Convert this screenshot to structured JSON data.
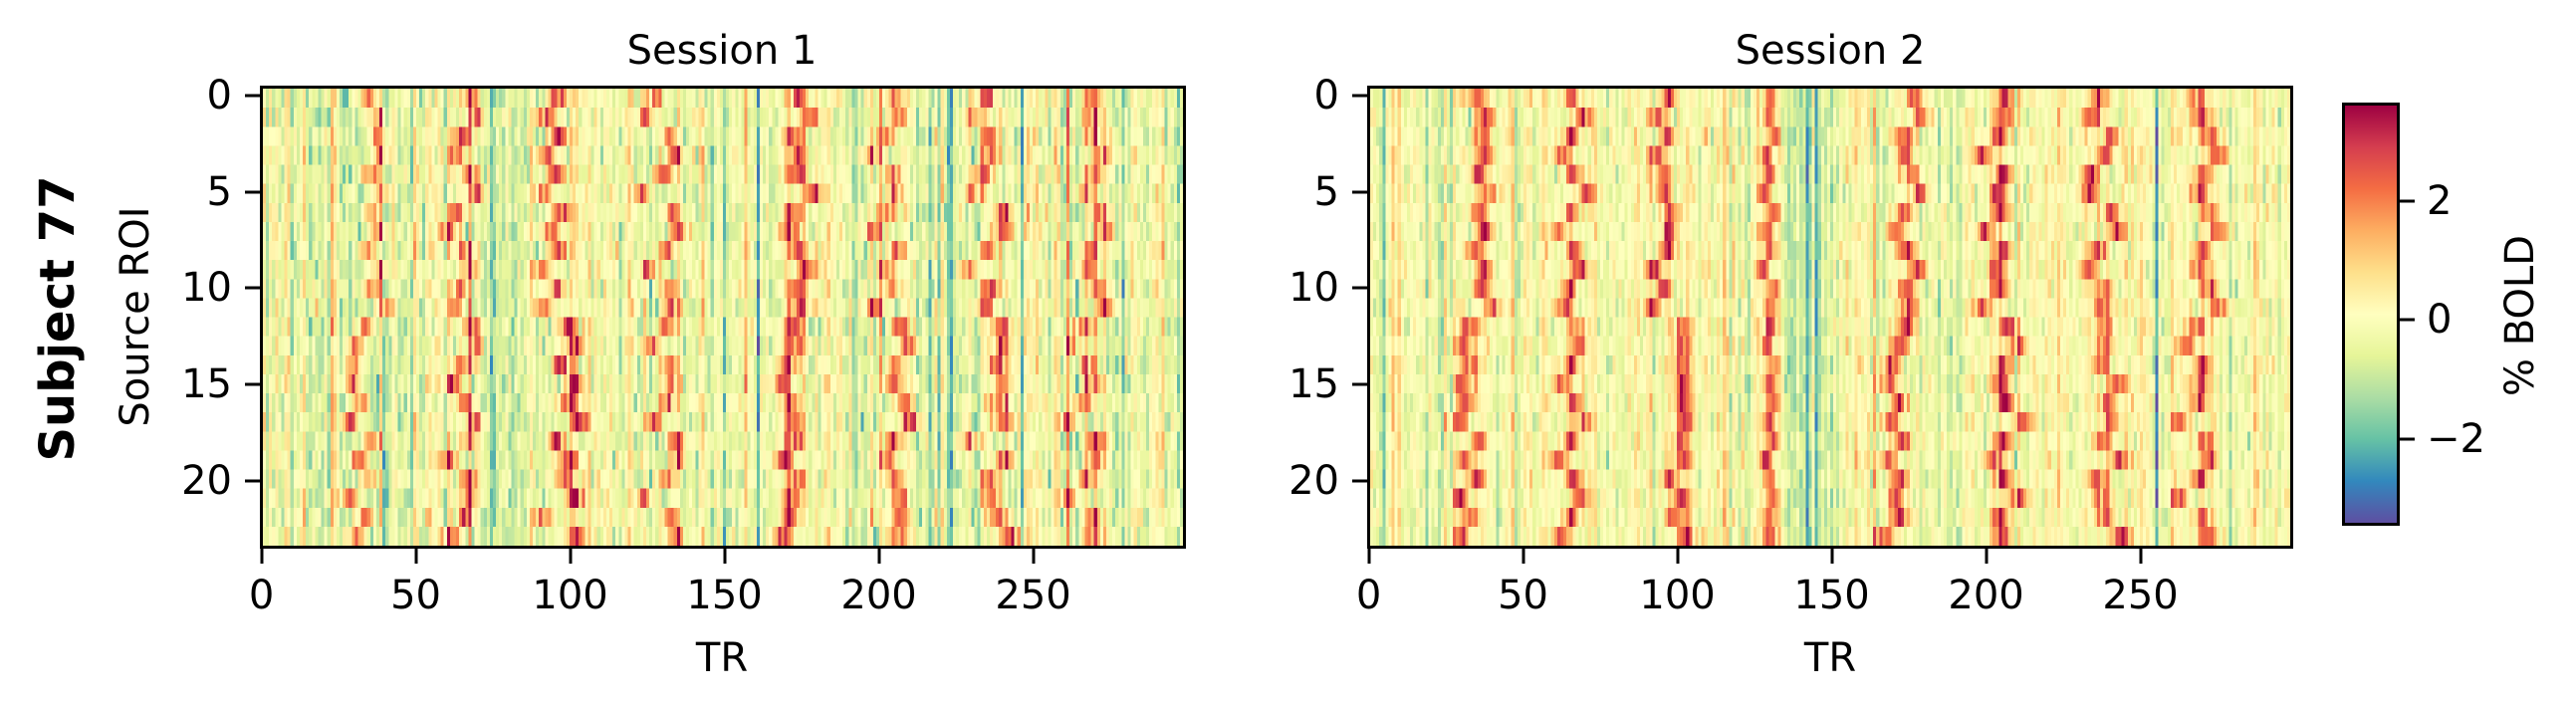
{
  "figure": {
    "row_label": "Subject 77",
    "colorbar": {
      "label": "% BOLD",
      "ticks": [
        {
          "value": 2,
          "label": "2"
        },
        {
          "value": 0,
          "label": "0"
        },
        {
          "value": -2,
          "label": "−2"
        }
      ],
      "vmin": -3.45,
      "vmax": 3.65,
      "colormap": "Spectral_r",
      "colormap_stops": [
        "#5e4fa2",
        "#3288bd",
        "#66c2a5",
        "#abdda4",
        "#e6f598",
        "#ffffbf",
        "#fee08b",
        "#fdae61",
        "#f46d43",
        "#d53e4f",
        "#9e0142"
      ]
    },
    "panels": [
      {
        "title": "Session 1",
        "xlabel": "TR",
        "ylabel": "Source ROI",
        "xticks": [
          {
            "v": 0,
            "l": "0"
          },
          {
            "v": 50,
            "l": "50"
          },
          {
            "v": 100,
            "l": "100"
          },
          {
            "v": 150,
            "l": "150"
          },
          {
            "v": 200,
            "l": "200"
          },
          {
            "v": 250,
            "l": "250"
          }
        ],
        "yticks": [
          {
            "v": 0,
            "l": "0"
          },
          {
            "v": 5,
            "l": "5"
          },
          {
            "v": 10,
            "l": "10"
          },
          {
            "v": 15,
            "l": "15"
          },
          {
            "v": 20,
            "l": "20"
          }
        ]
      },
      {
        "title": "Session 2",
        "xlabel": "TR",
        "ylabel": "",
        "xticks": [
          {
            "v": 0,
            "l": "0"
          },
          {
            "v": 50,
            "l": "50"
          },
          {
            "v": 100,
            "l": "100"
          },
          {
            "v": 150,
            "l": "150"
          },
          {
            "v": 200,
            "l": "200"
          },
          {
            "v": 250,
            "l": "250"
          }
        ],
        "yticks": [
          {
            "v": 0,
            "l": "0"
          },
          {
            "v": 5,
            "l": "5"
          },
          {
            "v": 10,
            "l": "10"
          },
          {
            "v": 15,
            "l": "15"
          },
          {
            "v": 20,
            "l": "20"
          }
        ]
      }
    ]
  },
  "chart_data": [
    {
      "type": "heatmap",
      "title": "Session 1",
      "row_label": "Subject 77",
      "xlabel": "TR",
      "ylabel": "Source ROI",
      "n_rows": 24,
      "n_cols": 300,
      "xlim": [
        -0.5,
        299.5
      ],
      "ylim": [
        23.5,
        -0.5
      ],
      "colorbar_label": "% BOLD",
      "vmin": -3.45,
      "vmax": 3.65,
      "baseline_mean": -0.35,
      "noise_sd": 0.75,
      "peak_bands": [
        {
          "amp": 2.9,
          "width": 2.2,
          "centers": [
            34,
            37,
            37,
            38,
            35,
            38,
            35,
            37,
            34,
            37,
            35,
            39,
            33,
            30,
            29,
            29,
            31,
            28,
            35,
            31,
            34,
            28,
            33,
            30
          ]
        },
        {
          "amp": 2.8,
          "width": 2.0,
          "centers": [
            67,
            69,
            65,
            62,
            67,
            69,
            63,
            60,
            66,
            67,
            64,
            62,
            68,
            69,
            65,
            61,
            66,
            68,
            67,
            60,
            67,
            67,
            66,
            61
          ]
        },
        {
          "amp": 3.0,
          "width": 2.2,
          "centers": [
            96,
            92,
            96,
            92,
            95,
            91,
            97,
            94,
            96,
            91,
            95,
            91,
            99,
            101,
            97,
            101,
            99,
            103,
            95,
            99,
            98,
            101,
            91,
            102
          ]
        },
        {
          "amp": 2.9,
          "width": 2.0,
          "centers": [
            128,
            124,
            132,
            134,
            130,
            123,
            133,
            135,
            131,
            125,
            132,
            133,
            131,
            127,
            132,
            133,
            131,
            127,
            134,
            135,
            131,
            124,
            132,
            134
          ]
        },
        {
          "amp": 3.0,
          "width": 2.4,
          "centers": [
            174,
            178,
            173,
            174,
            174,
            179,
            173,
            171,
            174,
            177,
            174,
            175,
            173,
            173,
            171,
            169,
            172,
            173,
            173,
            169,
            174,
            172,
            171,
            169
          ]
        },
        {
          "amp": 2.9,
          "width": 2.2,
          "centers": [
            205,
            206,
            203,
            199,
            205,
            205,
            203,
            199,
            206,
            203,
            204,
            199,
            207,
            210,
            205,
            205,
            208,
            211,
            205,
            203,
            205,
            207,
            207,
            206
          ]
        },
        {
          "amp": 2.8,
          "width": 2.4,
          "centers": [
            235,
            231,
            236,
            237,
            234,
            231,
            241,
            241,
            236,
            230,
            237,
            235,
            240,
            240,
            239,
            241,
            240,
            241,
            230,
            242,
            236,
            237,
            239,
            243
          ]
        },
        {
          "amp": 2.6,
          "width": 2.4,
          "centers": [
            270,
            270,
            271,
            274,
            271,
            268,
            272,
            274,
            270,
            268,
            272,
            274,
            267,
            263,
            268,
            270,
            267,
            262,
            271,
            271,
            268,
            262,
            270,
            270
          ]
        }
      ],
      "trough_columns": [
        {
          "tr": 48,
          "amp": -1.6
        },
        {
          "tr": 150,
          "amp": -1.4
        },
        {
          "tr": 161,
          "amp": -1.8
        },
        {
          "tr": 223,
          "amp": -2.3
        },
        {
          "tr": 247,
          "amp": -2.4
        },
        {
          "tr": 280,
          "amp": -2.0
        },
        {
          "tr": 298,
          "amp": -2.2
        }
      ],
      "seed": 77
    },
    {
      "type": "heatmap",
      "title": "Session 2",
      "row_label": "Subject 77",
      "xlabel": "TR",
      "ylabel": "",
      "n_rows": 24,
      "n_cols": 300,
      "xlim": [
        -0.5,
        299.5
      ],
      "ylim": [
        23.5,
        -0.5
      ],
      "colorbar_label": "% BOLD",
      "vmin": -3.45,
      "vmax": 3.65,
      "baseline_mean": -0.1,
      "noise_sd": 0.6,
      "peak_bands": [
        {
          "amp": 2.8,
          "width": 2.2,
          "centers": [
            34,
            37,
            36,
            37,
            35,
            38,
            35,
            37,
            34,
            37,
            36,
            39,
            32,
            30,
            32,
            30,
            31,
            29,
            35,
            31,
            34,
            29,
            32,
            29
          ]
        },
        {
          "amp": 2.8,
          "width": 2.0,
          "centers": [
            65,
            69,
            65,
            62,
            66,
            70,
            65,
            61,
            66,
            68,
            64,
            63,
            67,
            68,
            65,
            62,
            66,
            69,
            65,
            61,
            66,
            68,
            65,
            62
          ]
        },
        {
          "amp": 2.9,
          "width": 2.0,
          "centers": [
            97,
            93,
            96,
            93,
            95,
            95,
            98,
            97,
            97,
            92,
            95,
            92,
            101,
            101,
            101,
            101,
            101,
            102,
            100,
            101,
            98,
            101,
            99,
            102
          ]
        },
        {
          "amp": 3.0,
          "width": 1.4,
          "centers": [
            130,
            130,
            131,
            129,
            130,
            128,
            131,
            129,
            130,
            128,
            131,
            130,
            130,
            129,
            131,
            130,
            131,
            130,
            131,
            129,
            130,
            131,
            130,
            130
          ]
        },
        {
          "amp": 3.0,
          "width": 2.2,
          "centers": [
            177,
            179,
            174,
            174,
            176,
            179,
            174,
            171,
            175,
            178,
            174,
            175,
            174,
            172,
            169,
            168,
            172,
            169,
            173,
            168,
            172,
            171,
            172,
            167
          ]
        },
        {
          "amp": 2.9,
          "width": 2.2,
          "centers": [
            207,
            206,
            204,
            199,
            206,
            204,
            205,
            200,
            206,
            204,
            204,
            199,
            208,
            211,
            206,
            205,
            207,
            212,
            206,
            203,
            206,
            211,
            205,
            206
          ]
        },
        {
          "amp": 2.8,
          "width": 2.2,
          "centers": [
            237,
            235,
            241,
            239,
            235,
            234,
            241,
            243,
            237,
            234,
            239,
            238,
            239,
            239,
            238,
            243,
            240,
            241,
            239,
            244,
            237,
            238,
            239,
            244
          ]
        },
        {
          "amp": 2.6,
          "width": 2.2,
          "centers": [
            269,
            270,
            273,
            276,
            271,
            270,
            273,
            276,
            271,
            270,
            273,
            276,
            269,
            266,
            271,
            270,
            270,
            263,
            272,
            273,
            270,
            263,
            271,
            273
          ]
        }
      ],
      "trough_columns": [
        {
          "tr": 142,
          "amp": -1.2
        },
        {
          "tr": 145,
          "amp": -1.0
        },
        {
          "tr": 185,
          "amp": -1.4
        },
        {
          "tr": 256,
          "amp": -3.0
        }
      ],
      "trough_regions": [
        {
          "tr_start": 134,
          "tr_end": 150,
          "amp": -0.7
        }
      ],
      "seed": 177
    }
  ]
}
